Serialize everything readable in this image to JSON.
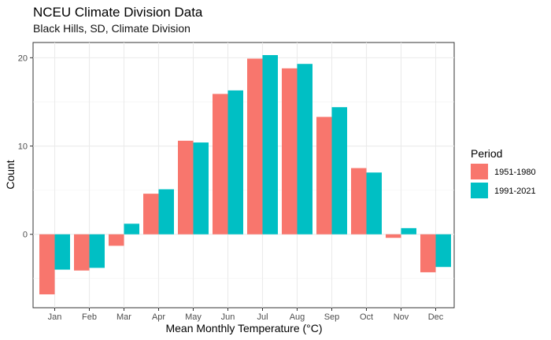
{
  "chart_data": {
    "type": "bar",
    "title": "NCEU Climate Division Data",
    "subtitle": "Black Hills, SD, Climate Division",
    "xlabel": "Mean Monthly Temperature (°C)",
    "ylabel": "Count",
    "categories": [
      "Jan",
      "Feb",
      "Mar",
      "Apr",
      "May",
      "Jun",
      "Jul",
      "Aug",
      "Sep",
      "Oct",
      "Nov",
      "Dec"
    ],
    "series": [
      {
        "name": "1951-1980",
        "color": "#F8766D",
        "values": [
          -6.8,
          -4.1,
          -1.3,
          4.6,
          10.6,
          15.9,
          19.9,
          18.8,
          13.3,
          7.5,
          -0.4,
          -4.3
        ]
      },
      {
        "name": "1991-2021",
        "color": "#00BFC4",
        "values": [
          -4.0,
          -3.8,
          1.2,
          5.1,
          10.4,
          16.3,
          20.3,
          19.3,
          14.4,
          7.0,
          0.7,
          -3.7
        ]
      }
    ],
    "ylim": [
      -6.8,
      20.3
    ],
    "y_ticks": [
      0,
      10,
      20
    ],
    "legend": {
      "title": "Period",
      "position": "right"
    },
    "grid": true
  }
}
